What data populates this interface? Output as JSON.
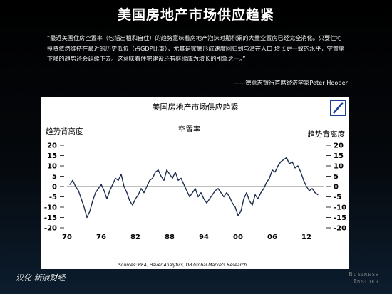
{
  "slide": {
    "title": "美国房地产市场供应趋紧",
    "quote": "“最近美国住房空置率（包括出租和自住）的趋势意味着房地产泡沫时期积累的大量空置房已经完全消化。只要住宅投资依然维持在最近的历史低位（占GDP比重），尤其是家庭形成速度回归到与潜在人口 增长更一致的水平，空置率下降的趋势还会延续下去。这意味着住宅建设还有继续成为增长的引擎之一。”",
    "attribution": "——德意志银行首席经济学家Peter Hooper",
    "footer_left": "汉化 新浪财经",
    "footer_right_line1": "Business",
    "footer_right_line2": "Insider"
  },
  "colors": {
    "background": "#000000",
    "series": "#1f2f4f",
    "zero_line": "#7a7a7a",
    "logo": "#1c3f94"
  },
  "icons": {
    "logo": "deutsche-bank-logo"
  },
  "chart_data": {
    "type": "line",
    "title": "美国房地产市场供应趋紧",
    "series_label": "空置率",
    "ylabel_left": "趋势背离度",
    "ylabel_right": "趋势背离度",
    "ylim": [
      -20,
      20
    ],
    "yticks": [
      20,
      15,
      10,
      5,
      0,
      -5,
      -10,
      -15,
      -20
    ],
    "xlim": [
      1970,
      2015
    ],
    "xticks": [
      {
        "value": 1970,
        "label": "70"
      },
      {
        "value": 1976,
        "label": "76"
      },
      {
        "value": 1982,
        "label": "82"
      },
      {
        "value": 1988,
        "label": "88"
      },
      {
        "value": 1994,
        "label": "94"
      },
      {
        "value": 2000,
        "label": "00"
      },
      {
        "value": 2006,
        "label": "06"
      },
      {
        "value": 2012,
        "label": "12"
      }
    ],
    "source": "Sources: BEA, Haver Analytics, DB Global Markets Research",
    "x": [
      1970.5,
      1971,
      1971.5,
      1972,
      1972.5,
      1973,
      1973.5,
      1974,
      1974.5,
      1975,
      1975.5,
      1976,
      1976.5,
      1977,
      1977.5,
      1978,
      1978.5,
      1979,
      1979.5,
      1980,
      1980.5,
      1981,
      1981.5,
      1982,
      1982.5,
      1983,
      1983.5,
      1984,
      1984.5,
      1985,
      1985.5,
      1986,
      1986.5,
      1987,
      1987.5,
      1988,
      1988.5,
      1989,
      1989.5,
      1990,
      1990.5,
      1991,
      1991.5,
      1992,
      1992.5,
      1993,
      1993.5,
      1994,
      1994.5,
      1995,
      1995.5,
      1996,
      1996.5,
      1997,
      1997.5,
      1998,
      1998.5,
      1999,
      1999.5,
      2000,
      2000.5,
      2001,
      2001.5,
      2002,
      2002.5,
      2003,
      2003.5,
      2004,
      2004.5,
      2005,
      2005.5,
      2006,
      2006.5,
      2007,
      2007.5,
      2008,
      2008.5,
      2009,
      2009.5,
      2010,
      2010.5,
      2011,
      2011.5,
      2012,
      2012.5,
      2013,
      2013.5,
      2014
    ],
    "values": [
      1,
      3,
      0,
      -2,
      -6,
      -10,
      -15,
      -12,
      -7,
      -3,
      -1,
      1,
      -2,
      -6,
      -2,
      1,
      4,
      3,
      6,
      0,
      -3,
      -7,
      -9,
      -6,
      -4,
      -1,
      -3,
      0,
      3,
      4,
      7,
      8,
      5,
      3,
      8,
      6,
      4,
      7,
      3,
      4,
      1,
      -2,
      -5,
      -3,
      -1,
      -5,
      -3,
      -6,
      -8,
      -6,
      -4,
      -2,
      -1,
      -3,
      -5,
      -3,
      -5,
      -8,
      -10,
      -14,
      -12,
      -6,
      -3,
      -7,
      -9,
      -4,
      -6,
      -3,
      -1,
      2,
      4,
      8,
      7,
      10,
      12,
      13,
      14,
      11,
      12,
      9,
      10,
      7,
      3,
      0,
      -2,
      -1,
      -3,
      -4
    ]
  }
}
